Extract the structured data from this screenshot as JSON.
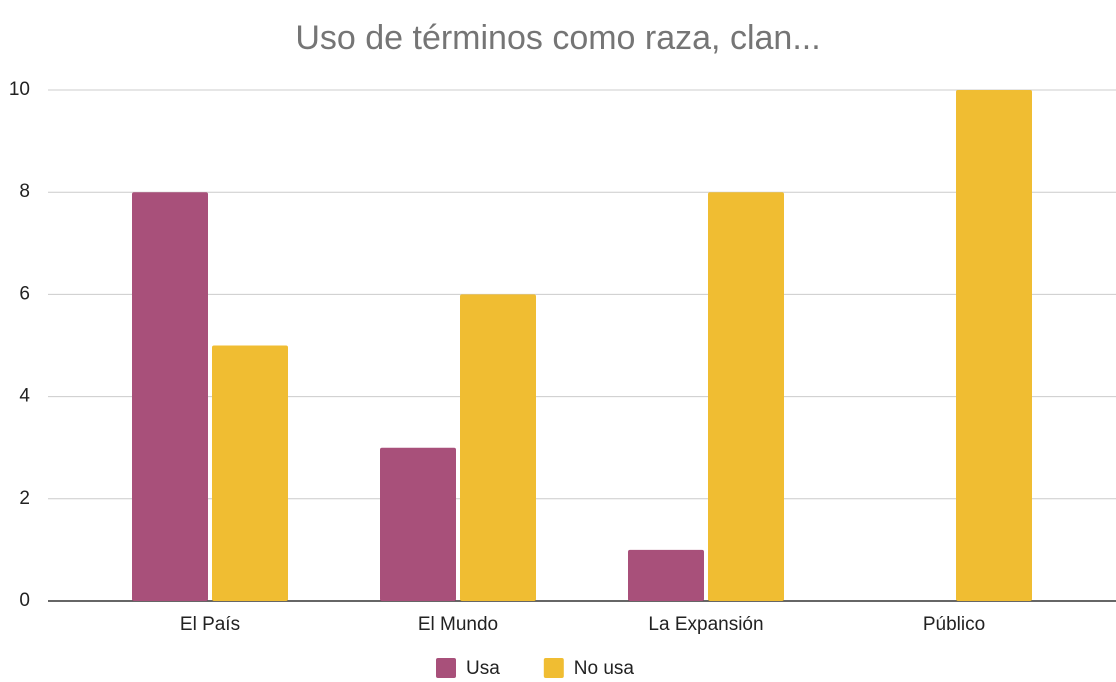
{
  "chart_data": {
    "type": "bar",
    "title": "Uso de términos como raza, clan...",
    "categories": [
      "El País",
      "El Mundo",
      "La Expansión",
      "Público"
    ],
    "series": [
      {
        "name": "Usa",
        "color": "#a8507a",
        "values": [
          8,
          3,
          1,
          0
        ]
      },
      {
        "name": "No usa",
        "color": "#f0bd32",
        "values": [
          5,
          6,
          8,
          10
        ]
      }
    ],
    "ylim": [
      0,
      10
    ],
    "yticks": [
      0,
      2,
      4,
      6,
      8,
      10
    ],
    "grid": true,
    "legend": "bottom"
  }
}
